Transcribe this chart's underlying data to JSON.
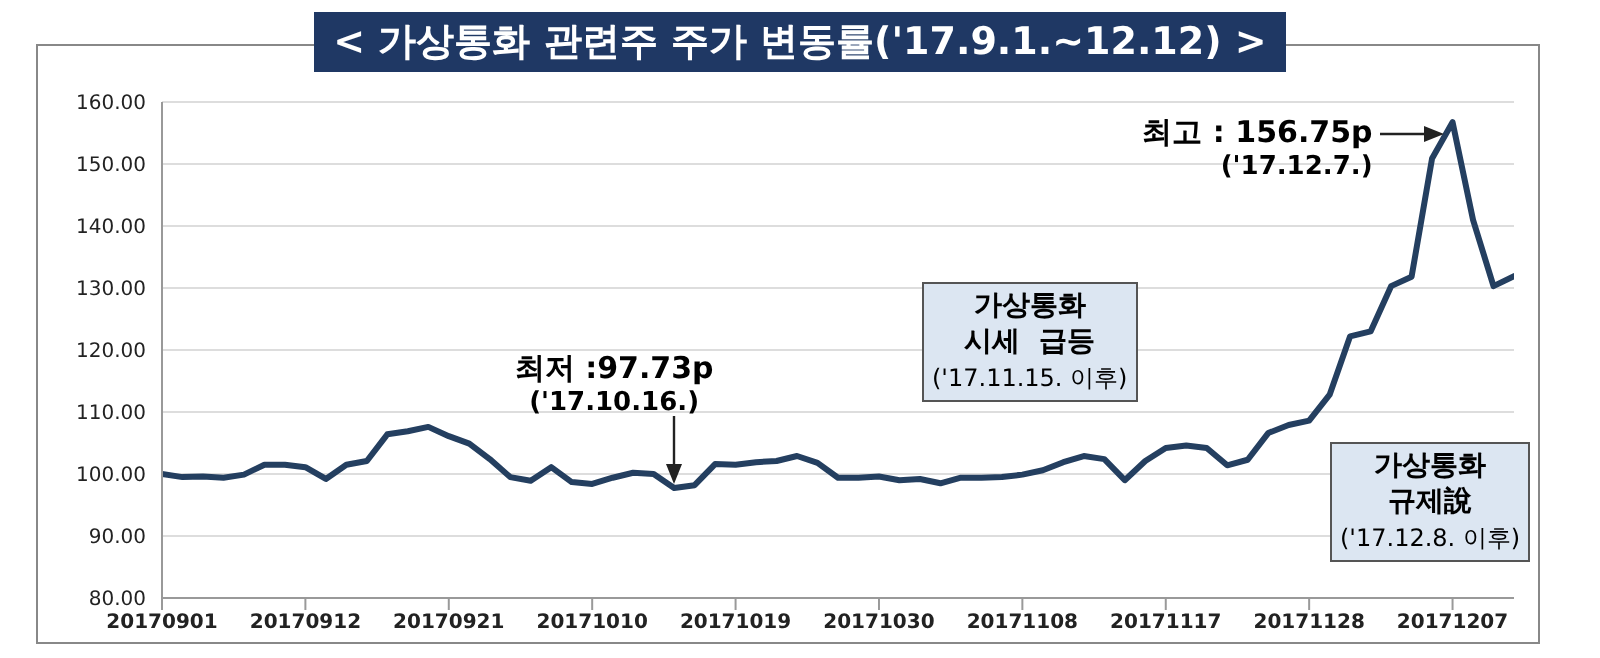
{
  "chart_data": {
    "type": "line",
    "title": "< 가상통화 관련주 주가 변동률('17.9.1.~12.12) >",
    "categories": [
      "20170901",
      null,
      null,
      null,
      null,
      null,
      null,
      "20170912",
      null,
      null,
      null,
      null,
      null,
      null,
      "20170921",
      null,
      null,
      null,
      null,
      null,
      null,
      "20171010",
      null,
      null,
      null,
      null,
      null,
      null,
      "20171019",
      null,
      null,
      null,
      null,
      null,
      null,
      "20171030",
      null,
      null,
      null,
      null,
      null,
      null,
      "20171108",
      null,
      null,
      null,
      null,
      null,
      null,
      "20171117",
      null,
      null,
      null,
      null,
      null,
      null,
      "20171128",
      null,
      null,
      null,
      null,
      null,
      null,
      "20171207",
      null,
      null,
      null
    ],
    "series": [
      {
        "color": "#243f60",
        "values": [
          100.0,
          99.5,
          99.6,
          99.4,
          99.9,
          101.5,
          101.5,
          101.1,
          99.2,
          101.5,
          102.1,
          106.4,
          106.9,
          107.6,
          106.1,
          104.9,
          102.4,
          99.5,
          98.9,
          101.1,
          98.7,
          98.4,
          99.4,
          100.2,
          100.0,
          97.73,
          98.2,
          101.6,
          101.5,
          101.9,
          102.1,
          102.9,
          101.8,
          99.4,
          99.4,
          99.6,
          99.0,
          99.2,
          98.5,
          99.4,
          99.4,
          99.5,
          99.9,
          100.6,
          101.9,
          102.9,
          102.4,
          99.0,
          102.1,
          104.2,
          104.6,
          104.2,
          101.4,
          102.3,
          106.6,
          107.9,
          108.6,
          112.8,
          122.2,
          123.0,
          130.3,
          131.8,
          150.9,
          156.75,
          141.0,
          130.3,
          131.9
        ]
      }
    ],
    "ylim": [
      80,
      160
    ],
    "yticks": [
      {
        "value": 80,
        "label": "80.00"
      },
      {
        "value": 90,
        "label": "90.00"
      },
      {
        "value": 100,
        "label": "100.00"
      },
      {
        "value": 110,
        "label": "110.00"
      },
      {
        "value": 120,
        "label": "120.00"
      },
      {
        "value": 130,
        "label": "130.00"
      },
      {
        "value": 140,
        "label": "140.00"
      },
      {
        "value": 150,
        "label": "150.00"
      },
      {
        "value": 160,
        "label": "160.00"
      }
    ],
    "grid": "y",
    "legend": false,
    "marker": "none",
    "line_style": "solid",
    "annotations": [
      "최저 :97.73p\n('17.10.16.)",
      "최고 : 156.75p\n('17.12.7.)",
      "가상통화\n시세  급등\n('17.11.15. 이후)",
      "가상통화\n규제說\n('17.12.8. 이후)"
    ]
  }
}
